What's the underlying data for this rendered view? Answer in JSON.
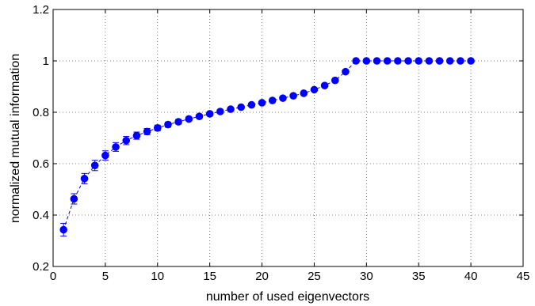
{
  "chart_data": {
    "type": "scatter",
    "title": "",
    "xlabel": "number of used eigenvectors",
    "ylabel": "normalized mutual information",
    "xlim": [
      0,
      45
    ],
    "ylim": [
      0.2,
      1.2
    ],
    "xticks": [
      0,
      5,
      10,
      15,
      20,
      25,
      30,
      35,
      40,
      45
    ],
    "yticks": [
      0.2,
      0.4,
      0.6,
      0.8,
      1.0,
      1.2
    ],
    "xtick_labels": [
      "0",
      "5",
      "10",
      "15",
      "20",
      "25",
      "30",
      "35",
      "40",
      "45"
    ],
    "ytick_labels": [
      "0.2",
      "0.4",
      "0.6",
      "0.8",
      "1",
      "1.2"
    ],
    "grid": true,
    "color": "#0000ff",
    "series": [
      {
        "x": [
          1,
          2,
          3,
          4,
          5,
          6,
          7,
          8,
          9,
          10,
          11,
          12,
          13,
          14,
          15,
          16,
          17,
          18,
          19,
          20,
          21,
          22,
          23,
          24,
          25,
          26,
          27,
          28,
          29,
          30,
          31,
          32,
          33,
          34,
          35,
          36,
          37,
          38,
          39,
          40
        ],
        "y": [
          0.343,
          0.463,
          0.542,
          0.593,
          0.632,
          0.665,
          0.69,
          0.709,
          0.725,
          0.739,
          0.752,
          0.763,
          0.774,
          0.784,
          0.794,
          0.803,
          0.812,
          0.82,
          0.829,
          0.837,
          0.846,
          0.855,
          0.864,
          0.874,
          0.888,
          0.904,
          0.924,
          0.958,
          1.0,
          1.0,
          1.0,
          1.0,
          1.0,
          1.0,
          1.0,
          1.0,
          1.0,
          1.0,
          1.0,
          1.0
        ],
        "err": [
          0.025,
          0.02,
          0.02,
          0.02,
          0.018,
          0.017,
          0.016,
          0.014,
          0.012,
          0.011,
          0.01,
          0.009,
          0.008,
          0.008,
          0.007,
          0.007,
          0.006,
          0.006,
          0.006,
          0.006,
          0.006,
          0.006,
          0.006,
          0.006,
          0.006,
          0.006,
          0.006,
          0.006,
          0,
          0,
          0,
          0,
          0,
          0,
          0,
          0,
          0,
          0,
          0,
          0
        ]
      }
    ]
  }
}
